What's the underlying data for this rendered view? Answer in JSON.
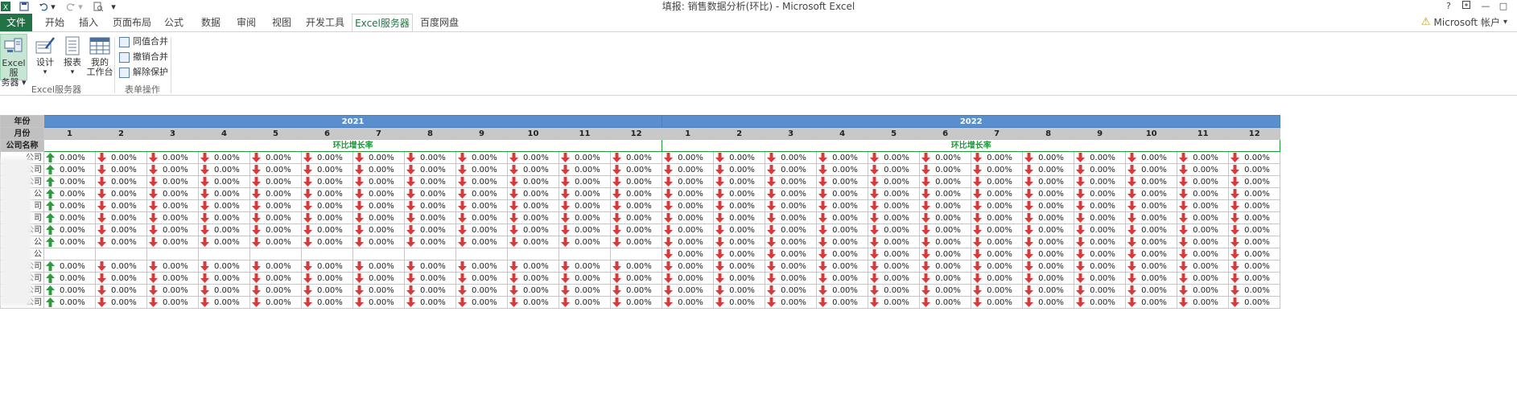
{
  "titlebar": {
    "title": "填报: 销售数据分析(环比) - Microsoft Excel",
    "help": "?",
    "restore": "□",
    "minimize": "—",
    "close": "□"
  },
  "tabs": {
    "file": "文件",
    "items": [
      "开始",
      "插入",
      "页面布局",
      "公式",
      "数据",
      "审阅",
      "视图",
      "开发工具",
      "Excel服务器",
      "百度网盘"
    ],
    "active_index": 8
  },
  "account": {
    "label": "Microsoft 帐户"
  },
  "ribbon": {
    "excel_server_line1": "Excel服",
    "excel_server_line2": "务器 ▾",
    "design": "设计",
    "design_dd": "▾",
    "report": "报表",
    "report_dd": "▾",
    "my_workspace_line1": "我的",
    "my_workspace_line2": "工作台",
    "merge_same": "同值合并",
    "unmerge": "撤销合并",
    "unprotect": "解除保护",
    "group1": "Excel服务器",
    "group2": "表单操作"
  },
  "sheet": {
    "header_year": "年份",
    "header_month": "月份",
    "header_company": "公司名称",
    "ratio_label": "环比增长率",
    "years": [
      "2021",
      "2022"
    ],
    "months": [
      "1",
      "2",
      "3",
      "4",
      "5",
      "6",
      "7",
      "8",
      "9",
      "10",
      "11",
      "12"
    ],
    "value_text": "0.00%",
    "row_labels": [
      "公司",
      "公司",
      "公司",
      "公",
      "司",
      "司",
      "公司",
      "公",
      "公",
      "公司",
      "公司",
      "公司",
      "公司"
    ],
    "rows_2021_first_arrow": [
      "up",
      "up",
      "up",
      "up",
      "up",
      "up",
      "up",
      "up",
      null,
      "up",
      "up",
      "up",
      "up"
    ],
    "colors": {
      "up": "#2e9c3e",
      "down": "#d83a3a",
      "year_bg": "#5a8fce",
      "accent": "#217346"
    }
  }
}
